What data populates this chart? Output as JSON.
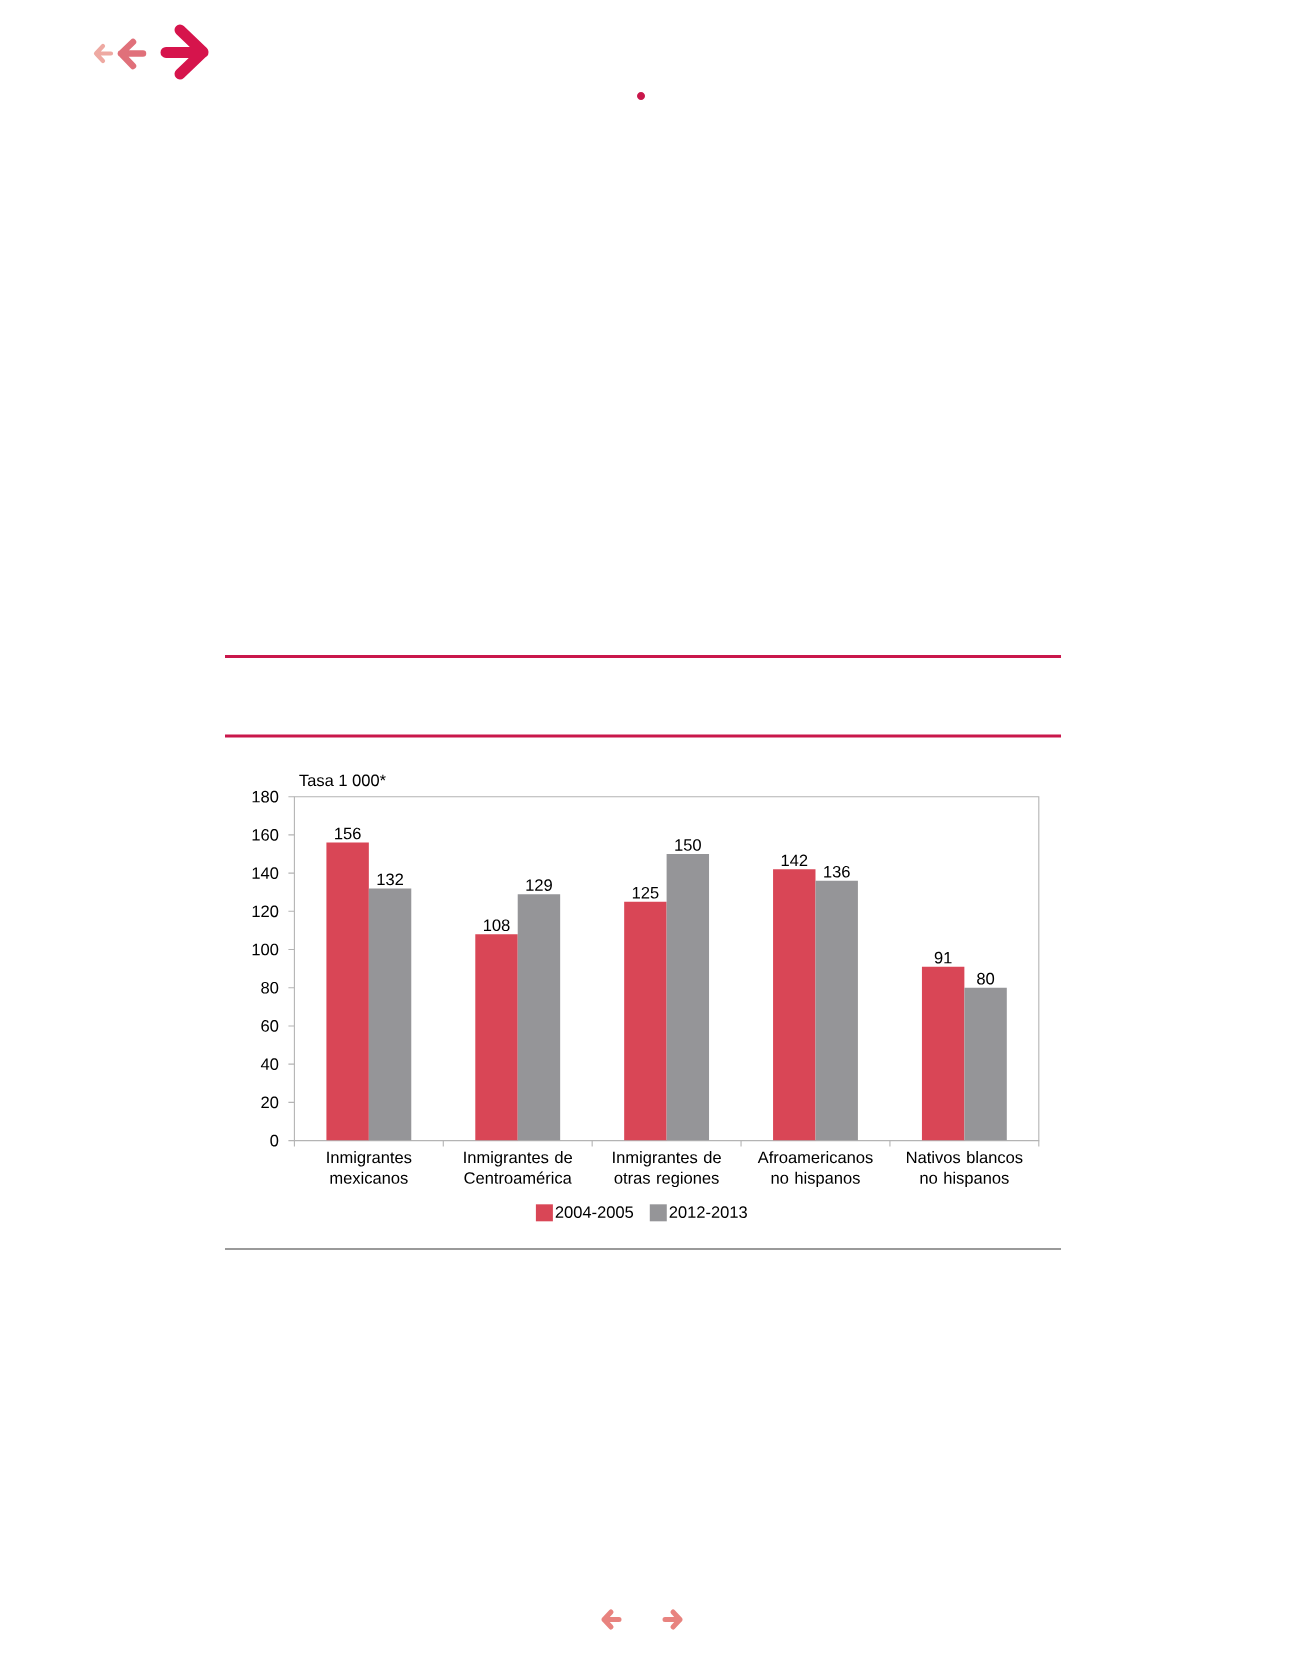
{
  "chart_data": {
    "type": "bar",
    "ylabel": "Tasa 1 000*",
    "categories": [
      "Inmigrantes mexicanos",
      "Inmigrantes de Centroamérica",
      "Inmigrantes de otras regiones",
      "Afroamericanos no hispanos",
      "Nativos blancos no hispanos"
    ],
    "series": [
      {
        "name": "2004-2005",
        "color": "#d94656",
        "values": [
          156,
          108,
          125,
          142,
          91
        ]
      },
      {
        "name": "2012-2013",
        "color": "#959598",
        "values": [
          132,
          129,
          150,
          136,
          80
        ]
      }
    ],
    "ylim": [
      0,
      180
    ],
    "yticks": [
      0,
      20,
      40,
      60,
      80,
      100,
      120,
      140,
      160,
      180
    ],
    "data_labels": true,
    "legend": "bottom"
  }
}
